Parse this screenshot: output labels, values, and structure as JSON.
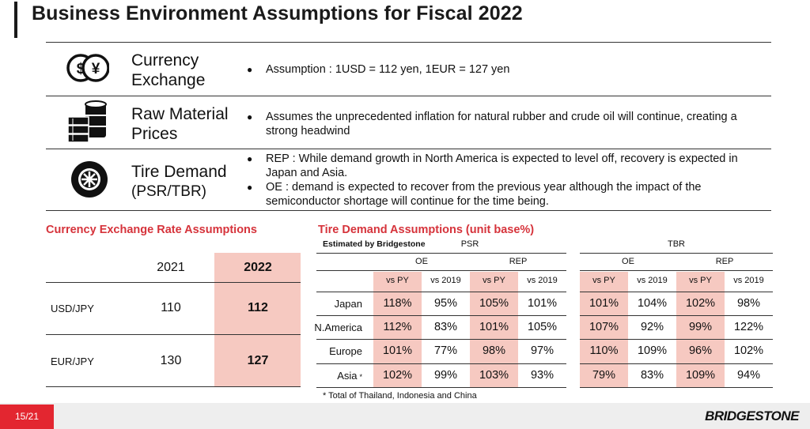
{
  "title": "Business Environment Assumptions for Fiscal 2022",
  "assumptions": [
    {
      "icon": "currency-exchange-icon",
      "heading_line1": "Currency",
      "heading_line2": "Exchange",
      "bullets": [
        "Assumption : 1USD = 112 yen, 1EUR = 127 yen"
      ]
    },
    {
      "icon": "raw-material-icon",
      "heading_line1": "Raw Material",
      "heading_line2": "Prices",
      "bullets": [
        "Assumes the unprecedented inflation for natural rubber and crude oil will continue, creating a strong headwind"
      ]
    },
    {
      "icon": "tire-icon",
      "heading_line1": "Tire Demand",
      "heading_line2": "(PSR/TBR)",
      "bullets": [
        "REP : While demand growth in North America is expected to level off, recovery is expected in Japan and Asia.",
        "OE : demand is expected to recover from the previous year although the impact of the semiconductor shortage will continue for the time being."
      ]
    }
  ],
  "currency_table": {
    "title": "Currency Exchange Rate Assumptions",
    "years": [
      "2021",
      "2022"
    ],
    "rows": [
      {
        "label": "USD/JPY",
        "values": [
          "110",
          "112"
        ]
      },
      {
        "label": "EUR/JPY",
        "values": [
          "130",
          "127"
        ]
      }
    ],
    "highlight_color": "#f6c9c1"
  },
  "tire_table": {
    "title": "Tire Demand Assumptions (unit base%)",
    "estimated": "Estimated by Bridgestone",
    "groups": [
      "PSR",
      "TBR"
    ],
    "subgroups": [
      "OE",
      "REP",
      "OE",
      "REP"
    ],
    "columns": [
      "vs PY",
      "vs 2019",
      "vs PY",
      "vs 2019",
      "vs PY",
      "vs 2019",
      "vs PY",
      "vs 2019"
    ],
    "rows": [
      {
        "region": "Japan",
        "asterisk": "",
        "values": [
          "118%",
          "95%",
          "105%",
          "101%",
          "101%",
          "104%",
          "102%",
          "98%"
        ]
      },
      {
        "region": "N.America",
        "asterisk": "",
        "values": [
          "112%",
          "83%",
          "101%",
          "105%",
          "107%",
          "92%",
          "99%",
          "122%"
        ]
      },
      {
        "region": "Europe",
        "asterisk": "",
        "values": [
          "101%",
          "77%",
          "98%",
          "97%",
          "110%",
          "109%",
          "96%",
          "102%"
        ]
      },
      {
        "region": "Asia",
        "asterisk": "*",
        "values": [
          "102%",
          "99%",
          "103%",
          "93%",
          "79%",
          "83%",
          "109%",
          "94%"
        ]
      }
    ],
    "footnote": "* Total of Thailand, Indonesia and China"
  },
  "footer": {
    "page": "15/21",
    "logo": "BRIDGESTONE",
    "accent": "#e32630"
  }
}
